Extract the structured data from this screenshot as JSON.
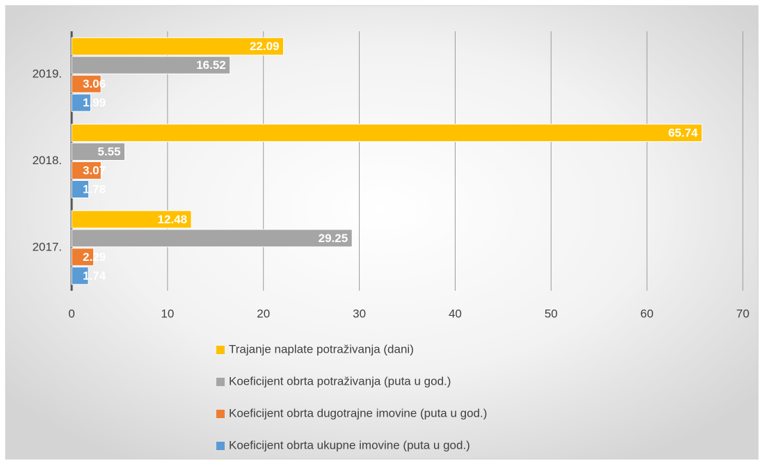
{
  "chart_data": {
    "type": "hbar",
    "categories": [
      "2017.",
      "2018.",
      "2019."
    ],
    "series": [
      {
        "name": "Trajanje naplate potraživanja (dani)",
        "color": "#ffc000",
        "values": [
          12.48,
          65.74,
          22.09
        ]
      },
      {
        "name": "Koeficijent obrta potraživanja (puta u god.)",
        "color": "#a5a5a5",
        "values": [
          29.25,
          5.55,
          16.52
        ]
      },
      {
        "name": "Koeficijent obrta dugotrajne imovine (puta u god.)",
        "color": "#ed7d31",
        "values": [
          2.29,
          3.07,
          3.06
        ]
      },
      {
        "name": "Koeficijent obrta ukupne imovine (puta u god.)",
        "color": "#5b9bd5",
        "values": [
          1.74,
          1.78,
          1.99
        ]
      }
    ],
    "xlim": [
      0,
      70
    ],
    "xticks": [
      0,
      10,
      20,
      30,
      40,
      50,
      60,
      70
    ],
    "grid": true,
    "legend": "bottom"
  }
}
